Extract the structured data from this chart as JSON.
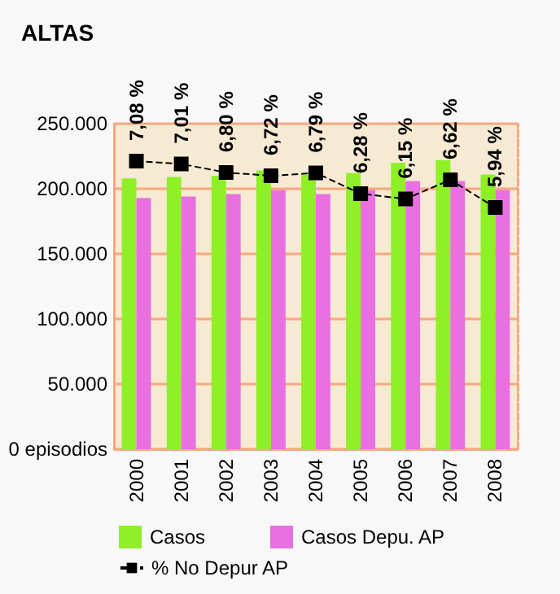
{
  "chart_data": {
    "type": "bar",
    "title": "ALTAS",
    "categories": [
      "2000",
      "2001",
      "2002",
      "2003",
      "2004",
      "2005",
      "2006",
      "2007",
      "2008"
    ],
    "series": [
      {
        "name": "Casos",
        "color": "#8ef025",
        "values": [
          208000,
          209000,
          210000,
          214000,
          211000,
          212000,
          220000,
          222000,
          211000
        ]
      },
      {
        "name": "Casos Depu. AP",
        "color": "#e970e0",
        "values": [
          193000,
          194000,
          196000,
          199000,
          196000,
          199000,
          206000,
          206000,
          199000
        ]
      },
      {
        "name": "% No Depur AP",
        "type": "line",
        "axis": "y2",
        "color": "#000000",
        "marker": "square",
        "line_style": "dashed",
        "values": [
          7.08,
          7.01,
          6.8,
          6.72,
          6.79,
          6.28,
          6.15,
          6.62,
          5.94
        ],
        "value_labels": [
          "7,08 %",
          "7,01 %",
          "6,80 %",
          "6,72 %",
          "6,79 %",
          "6,28 %",
          "6,15 %",
          "6,62 %",
          "5,94 %"
        ]
      }
    ],
    "ylim": [
      0,
      250000
    ],
    "yticks": [
      {
        "value": 0,
        "label": "0 episodios"
      },
      {
        "value": 50000,
        "label": "50.000"
      },
      {
        "value": 100000,
        "label": "100.000"
      },
      {
        "value": 150000,
        "label": "150.000"
      },
      {
        "value": 200000,
        "label": "200.000"
      },
      {
        "value": 250000,
        "label": "250.000"
      }
    ],
    "y2lim": [
      0,
      8
    ],
    "grid": "y",
    "legend": "bottom"
  }
}
